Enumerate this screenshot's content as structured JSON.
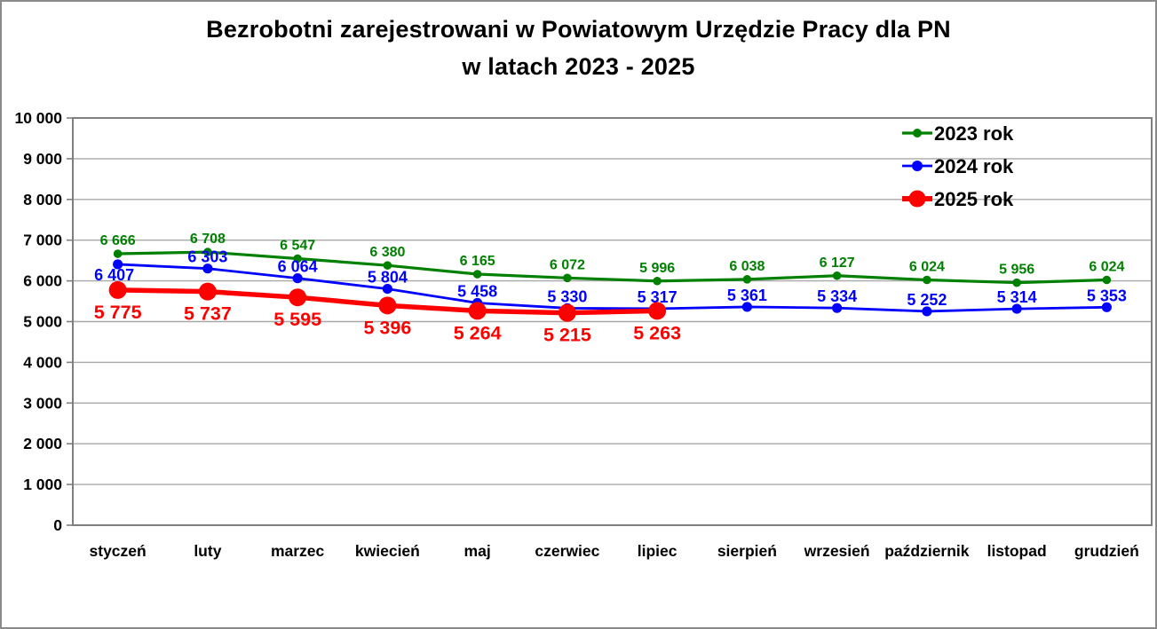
{
  "chart_data": {
    "type": "line",
    "title_line1": "Bezrobotni zarejestrowani w Powiatowym Urzędzie Pracy dla PN",
    "title_line2": "w latach 2023 - 2025",
    "categories": [
      "styczeń",
      "luty",
      "marzec",
      "kwiecień",
      "maj",
      "czerwiec",
      "lipiec",
      "sierpień",
      "wrzesień",
      "październik",
      "listopad",
      "grudzień"
    ],
    "series": [
      {
        "name": "2023 rok",
        "color": "#008000",
        "values": [
          6666,
          6708,
          6547,
          6380,
          6165,
          6072,
          5996,
          6038,
          6127,
          6024,
          5956,
          6024
        ]
      },
      {
        "name": "2024 rok",
        "color": "#0000FF",
        "values": [
          6407,
          6303,
          6064,
          5804,
          5458,
          5330,
          5317,
          5361,
          5334,
          5252,
          5314,
          5353
        ]
      },
      {
        "name": "2025 rok",
        "color": "#FF0000",
        "values": [
          5775,
          5737,
          5595,
          5396,
          5264,
          5215,
          5263
        ]
      }
    ],
    "ylim": [
      0,
      10000
    ],
    "ytick_step": 1000,
    "ytick_labels": [
      "0",
      "1 000",
      "2 000",
      "3 000",
      "4 000",
      "5 000",
      "6 000",
      "7 000",
      "8 000",
      "9 000",
      "10 000"
    ],
    "xlabel": "",
    "ylabel": "",
    "grid": "horizontal",
    "legend_position": "top-right",
    "legend_entries": [
      "2023 rok",
      "2024 rok",
      "2025 rok"
    ],
    "data_labels_visible": true
  },
  "colors": {
    "background": "#FFFFFF",
    "outer_border": "#8A8A8A",
    "plot_border": "#7F7F7F",
    "gridline": "#A8A8A8",
    "axis_text": "#000000"
  }
}
